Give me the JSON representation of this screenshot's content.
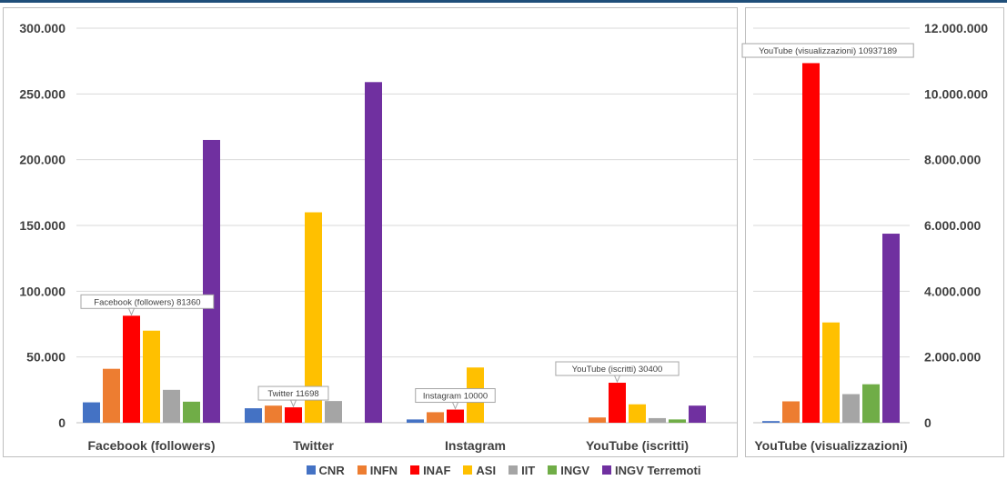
{
  "top_bar_color": "#1f4e79",
  "legend": {
    "items": [
      {
        "label": "CNR",
        "color": "#4472c4"
      },
      {
        "label": "INFN",
        "color": "#ed7d31"
      },
      {
        "label": "INAF",
        "color": "#ff0000"
      },
      {
        "label": "ASI",
        "color": "#ffc000"
      },
      {
        "label": "IIT",
        "color": "#a5a5a5"
      },
      {
        "label": "INGV",
        "color": "#70ad47"
      },
      {
        "label": "INGV Terremoti",
        "color": "#7030a0"
      }
    ]
  },
  "chart_data": [
    {
      "type": "bar",
      "categories": [
        "Facebook (followers)",
        "Twitter",
        "Instagram",
        "YouTube (iscritti)"
      ],
      "ylim": [
        0,
        300000
      ],
      "yticks": [
        "0",
        "50.000",
        "100.000",
        "150.000",
        "200.000",
        "250.000",
        "300.000"
      ],
      "grid": true,
      "legend_position": "bottom",
      "series": [
        {
          "name": "CNR",
          "values": [
            15500,
            11000,
            2500,
            0
          ]
        },
        {
          "name": "INFN",
          "values": [
            41000,
            13000,
            8000,
            4000
          ]
        },
        {
          "name": "INAF",
          "values": [
            81360,
            11698,
            10000,
            30400
          ]
        },
        {
          "name": "ASI",
          "values": [
            70000,
            160000,
            42000,
            14000
          ]
        },
        {
          "name": "IIT",
          "values": [
            25000,
            16500,
            0,
            3500
          ]
        },
        {
          "name": "INGV",
          "values": [
            16000,
            0,
            0,
            2500
          ]
        },
        {
          "name": "INGV Terremoti",
          "values": [
            215000,
            259000,
            0,
            13000
          ]
        }
      ],
      "annotations": [
        {
          "category": "Facebook (followers)",
          "series": "INAF",
          "text": "Facebook (followers) 81360"
        },
        {
          "category": "Twitter",
          "series": "INAF",
          "text": "Twitter 11698"
        },
        {
          "category": "Instagram",
          "series": "INAF",
          "text": "Instagram 10000"
        },
        {
          "category": "YouTube (iscritti)",
          "series": "INAF",
          "text": "YouTube (iscritti) 30400"
        }
      ]
    },
    {
      "type": "bar",
      "categories": [
        "YouTube (visualizzazioni)"
      ],
      "ylim": [
        0,
        12000000
      ],
      "yticks": [
        "0",
        "2.000.000",
        "4.000.000",
        "6.000.000",
        "8.000.000",
        "10.000.000",
        "12.000.000"
      ],
      "grid": true,
      "legend_position": "bottom",
      "series": [
        {
          "name": "CNR",
          "values": [
            50000
          ]
        },
        {
          "name": "INFN",
          "values": [
            650000
          ]
        },
        {
          "name": "INAF",
          "values": [
            10937189
          ]
        },
        {
          "name": "ASI",
          "values": [
            3050000
          ]
        },
        {
          "name": "IIT",
          "values": [
            870000
          ]
        },
        {
          "name": "INGV",
          "values": [
            1170000
          ]
        },
        {
          "name": "INGV Terremoti",
          "values": [
            5750000
          ]
        }
      ],
      "annotations": [
        {
          "category": "YouTube (visualizzazioni)",
          "series": "INAF",
          "text": "YouTube (visualizzazioni) 10937189"
        }
      ]
    }
  ]
}
